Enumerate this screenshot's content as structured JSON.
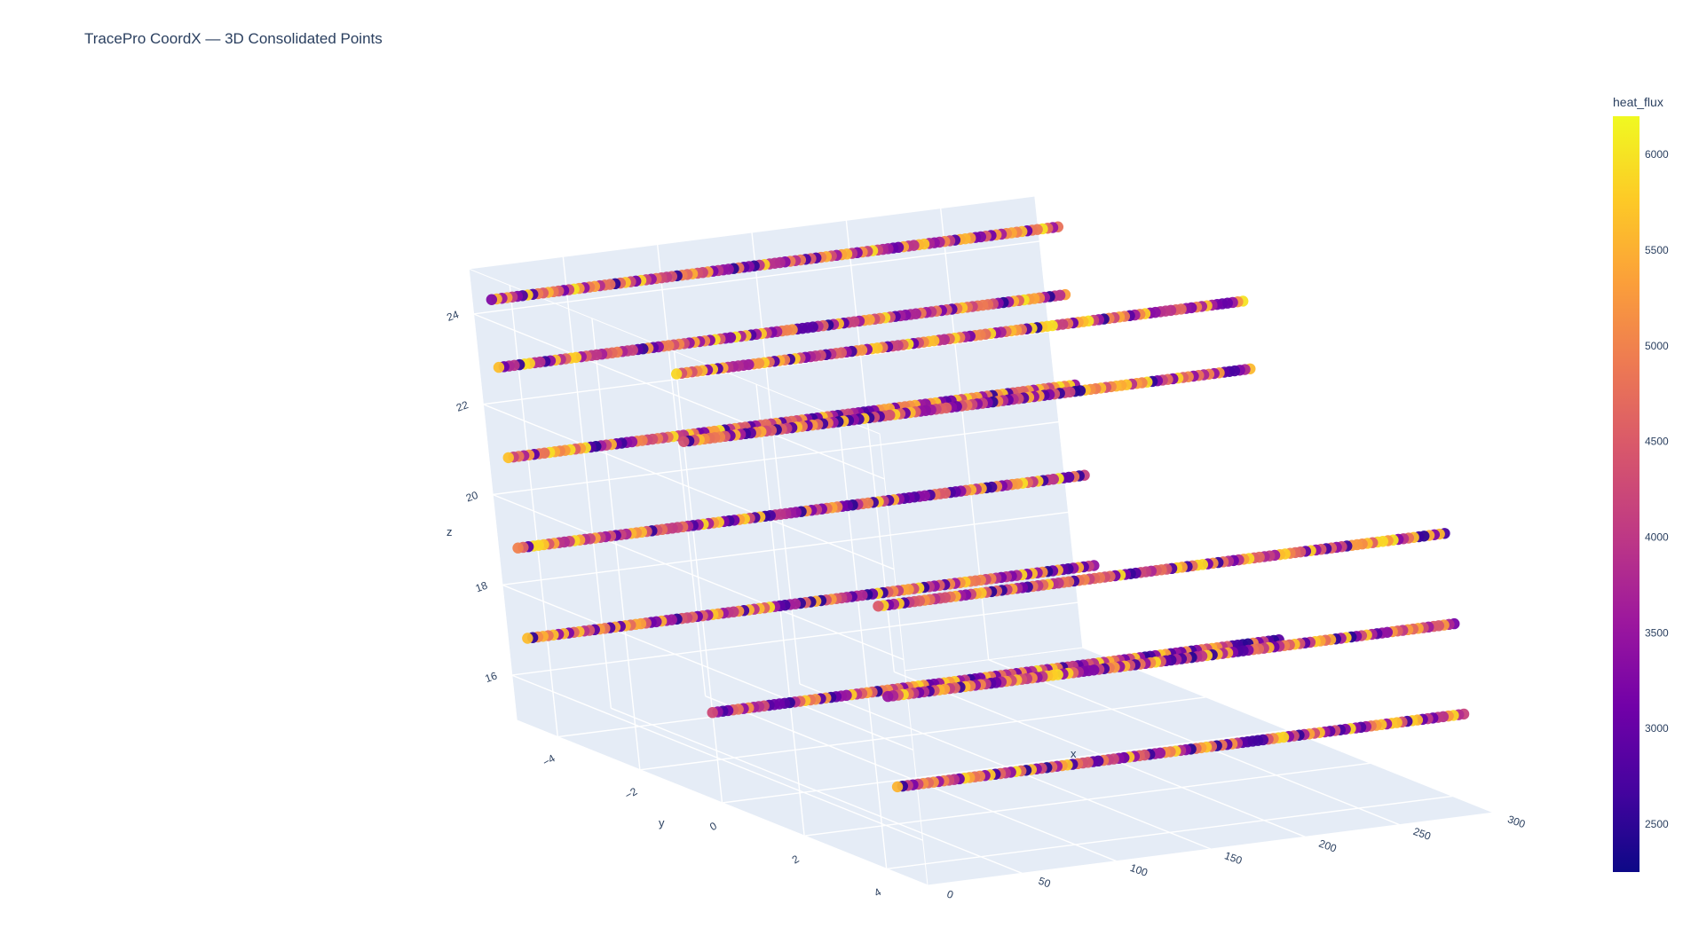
{
  "chart_data": {
    "type": "scatter",
    "dimensionality": "3d",
    "title": "TracePro CoordX — 3D Consolidated Points",
    "xlabel": "x",
    "ylabel": "y",
    "zlabel": "z",
    "x_ticks": [
      "0",
      "50",
      "100",
      "150",
      "200",
      "250",
      "300"
    ],
    "y_ticks": [
      "−4",
      "−2",
      "0",
      "2",
      "4"
    ],
    "z_ticks": [
      "16",
      "18",
      "20",
      "22",
      "24"
    ],
    "xlim": [
      0,
      300
    ],
    "ylim": [
      -5,
      5
    ],
    "zlim": [
      15,
      25
    ],
    "colorbar": {
      "title": "heat_flux",
      "ticks": [
        "2500",
        "3000",
        "3500",
        "4000",
        "4500",
        "5000",
        "5500",
        "6000"
      ],
      "range": [
        2250,
        6200
      ],
      "colorscale": "plasma"
    },
    "series_lines": [
      {
        "y": -4.5,
        "z": 24.5,
        "x_range": [
          0,
          300
        ]
      },
      {
        "y": -4.5,
        "z": 23.0,
        "x_range": [
          0,
          300
        ]
      },
      {
        "y": -4.5,
        "z": 21.0,
        "x_range": [
          0,
          300
        ]
      },
      {
        "y": -4.5,
        "z": 19.0,
        "x_range": [
          0,
          300
        ]
      },
      {
        "y": -4.5,
        "z": 17.0,
        "x_range": [
          0,
          300
        ]
      },
      {
        "y": 0.0,
        "z": 24.5,
        "x_range": [
          0,
          300
        ]
      },
      {
        "y": 0.0,
        "z": 23.0,
        "x_range": [
          0,
          300
        ]
      },
      {
        "y": 0.0,
        "z": 17.0,
        "x_range": [
          0,
          300
        ]
      },
      {
        "y": 4.5,
        "z": 21.0,
        "x_range": [
          0,
          300
        ]
      },
      {
        "y": 4.5,
        "z": 19.0,
        "x_range": [
          0,
          300
        ]
      },
      {
        "y": 4.5,
        "z": 17.0,
        "x_range": [
          0,
          300
        ]
      }
    ]
  }
}
